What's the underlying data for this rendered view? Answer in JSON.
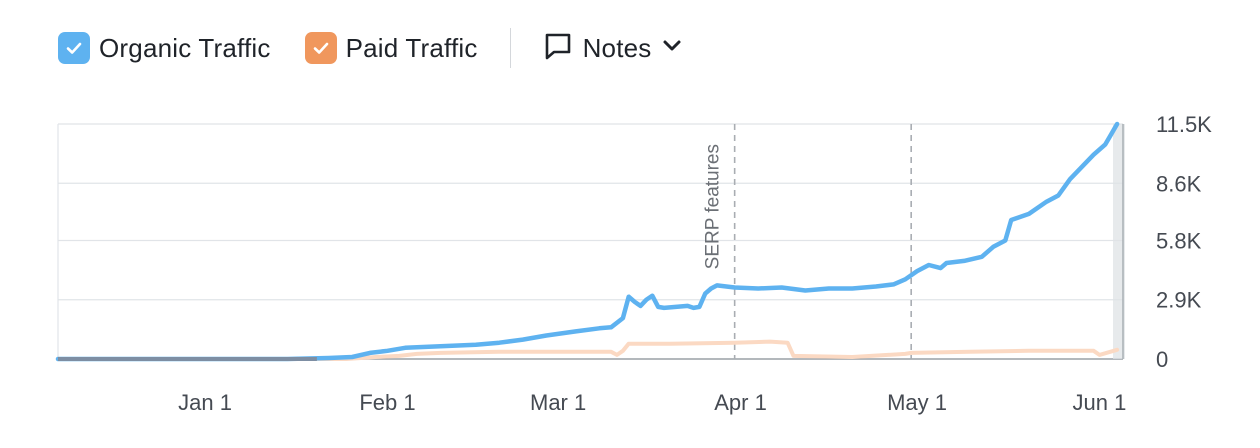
{
  "legend": {
    "organic_label": "Organic Traffic",
    "paid_label": "Paid Traffic",
    "notes_label": "Notes",
    "organic_color": "#5eb2f0",
    "paid_color": "#f0975d",
    "check_icon": "check-icon",
    "notes_icon": "speech-bubble-icon",
    "dropdown_icon": "chevron-down-icon"
  },
  "chart_data": {
    "type": "line",
    "title": "",
    "xlabel": "",
    "ylabel": "",
    "x_ticks": [
      {
        "label": "Jan 1",
        "date": "2024-01-01"
      },
      {
        "label": "Feb 1",
        "date": "2024-02-01"
      },
      {
        "label": "Mar 1",
        "date": "2024-03-01"
      },
      {
        "label": "Apr 1",
        "date": "2024-04-01"
      },
      {
        "label": "May 1",
        "date": "2024-05-01"
      },
      {
        "label": "Jun 1",
        "date": "2024-06-01"
      }
    ],
    "xlim": [
      "2023-12-07",
      "2024-06-05"
    ],
    "y_ticks": [
      {
        "label": "0",
        "value": 0
      },
      {
        "label": "2.9K",
        "value": 2900
      },
      {
        "label": "5.8K",
        "value": 5800
      },
      {
        "label": "8.6K",
        "value": 8600
      },
      {
        "label": "11.5K",
        "value": 11500
      }
    ],
    "ylim": [
      0,
      11500
    ],
    "grid": true,
    "annotations": [
      {
        "date": "2024-03-31",
        "label": "SERP features"
      },
      {
        "date": "2024-04-30",
        "label": ""
      }
    ],
    "series": [
      {
        "name": "Organic Traffic",
        "color": "#5eb2f0",
        "points": [
          [
            "2023-12-07",
            0
          ],
          [
            "2024-01-15",
            0
          ],
          [
            "2024-01-22",
            50
          ],
          [
            "2024-01-26",
            100
          ],
          [
            "2024-01-29",
            300
          ],
          [
            "2024-02-01",
            400
          ],
          [
            "2024-02-04",
            550
          ],
          [
            "2024-02-08",
            600
          ],
          [
            "2024-02-12",
            650
          ],
          [
            "2024-02-16",
            700
          ],
          [
            "2024-02-20",
            800
          ],
          [
            "2024-02-24",
            950
          ],
          [
            "2024-02-28",
            1150
          ],
          [
            "2024-03-04",
            1350
          ],
          [
            "2024-03-08",
            1500
          ],
          [
            "2024-03-10",
            1550
          ],
          [
            "2024-03-12",
            2000
          ],
          [
            "2024-03-13",
            3050
          ],
          [
            "2024-03-14",
            2800
          ],
          [
            "2024-03-15",
            2600
          ],
          [
            "2024-03-16",
            2900
          ],
          [
            "2024-03-17",
            3100
          ],
          [
            "2024-03-18",
            2550
          ],
          [
            "2024-03-19",
            2500
          ],
          [
            "2024-03-21",
            2550
          ],
          [
            "2024-03-23",
            2600
          ],
          [
            "2024-03-24",
            2500
          ],
          [
            "2024-03-25",
            2550
          ],
          [
            "2024-03-26",
            3200
          ],
          [
            "2024-03-27",
            3450
          ],
          [
            "2024-03-28",
            3600
          ],
          [
            "2024-03-31",
            3500
          ],
          [
            "2024-04-04",
            3450
          ],
          [
            "2024-04-08",
            3500
          ],
          [
            "2024-04-12",
            3350
          ],
          [
            "2024-04-16",
            3450
          ],
          [
            "2024-04-20",
            3450
          ],
          [
            "2024-04-24",
            3550
          ],
          [
            "2024-04-27",
            3650
          ],
          [
            "2024-04-29",
            3900
          ],
          [
            "2024-05-01",
            4300
          ],
          [
            "2024-05-03",
            4600
          ],
          [
            "2024-05-05",
            4450
          ],
          [
            "2024-05-06",
            4700
          ],
          [
            "2024-05-09",
            4800
          ],
          [
            "2024-05-12",
            5000
          ],
          [
            "2024-05-14",
            5500
          ],
          [
            "2024-05-16",
            5800
          ],
          [
            "2024-05-17",
            6800
          ],
          [
            "2024-05-20",
            7100
          ],
          [
            "2024-05-23",
            7700
          ],
          [
            "2024-05-25",
            8000
          ],
          [
            "2024-05-27",
            8800
          ],
          [
            "2024-05-29",
            9400
          ],
          [
            "2024-05-31",
            10000
          ],
          [
            "2024-06-02",
            10500
          ],
          [
            "2024-06-03",
            11000
          ],
          [
            "2024-06-04",
            11500
          ]
        ]
      },
      {
        "name": "Paid Traffic",
        "color": "#f0975d",
        "points": [
          [
            "2023-12-07",
            0
          ],
          [
            "2024-01-25",
            0
          ],
          [
            "2024-01-30",
            100
          ],
          [
            "2024-02-03",
            150
          ],
          [
            "2024-02-06",
            250
          ],
          [
            "2024-02-10",
            300
          ],
          [
            "2024-02-20",
            350
          ],
          [
            "2024-03-10",
            350
          ],
          [
            "2024-03-11",
            200
          ],
          [
            "2024-03-12",
            400
          ],
          [
            "2024-03-13",
            750
          ],
          [
            "2024-03-20",
            750
          ],
          [
            "2024-03-31",
            800
          ],
          [
            "2024-04-06",
            850
          ],
          [
            "2024-04-09",
            800
          ],
          [
            "2024-04-10",
            150
          ],
          [
            "2024-04-20",
            100
          ],
          [
            "2024-04-29",
            250
          ],
          [
            "2024-04-30",
            300
          ],
          [
            "2024-05-10",
            350
          ],
          [
            "2024-05-20",
            400
          ],
          [
            "2024-05-31",
            400
          ],
          [
            "2024-06-01",
            200
          ],
          [
            "2024-06-04",
            450
          ]
        ]
      }
    ]
  }
}
